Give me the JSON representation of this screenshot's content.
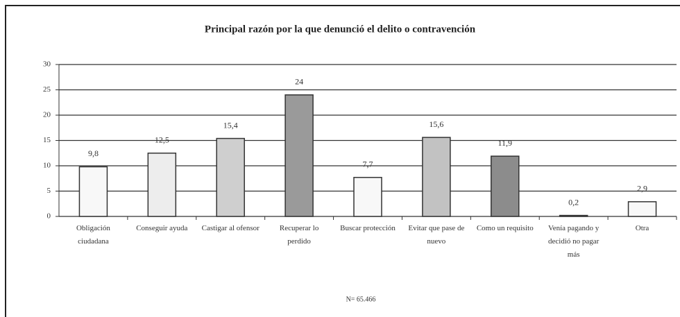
{
  "chart_data": {
    "type": "bar",
    "title": "Principal razón por la que denunció el delito o contravención",
    "categories": [
      "Obligación ciudadana",
      "Conseguir ayuda",
      "Castigar al ofensor",
      "Recuperar lo perdido",
      "Buscar protección",
      "Evitar que pase de nuevo",
      "Como un requisito",
      "Venía pagando y decidió no pagar más",
      "Otra"
    ],
    "values": [
      9.8,
      12.5,
      15.4,
      24,
      7.7,
      15.6,
      11.9,
      0.2,
      2.9
    ],
    "value_labels": [
      "9,8",
      "12,5",
      "15,4",
      "24",
      "7,7",
      "15,6",
      "11,9",
      "0,2",
      "2,9"
    ],
    "colors": [
      "#f8f8f8",
      "#ededed",
      "#cfcfcf",
      "#9a9a9a",
      "#f8f8f8",
      "#c2c2c2",
      "#8c8c8c",
      "#f0f0f0",
      "#f8f8f8"
    ],
    "ylim": [
      0,
      30
    ],
    "yticks": [
      0,
      5,
      10,
      15,
      20,
      25,
      30
    ],
    "grid": true,
    "note": "N= 65.466"
  }
}
